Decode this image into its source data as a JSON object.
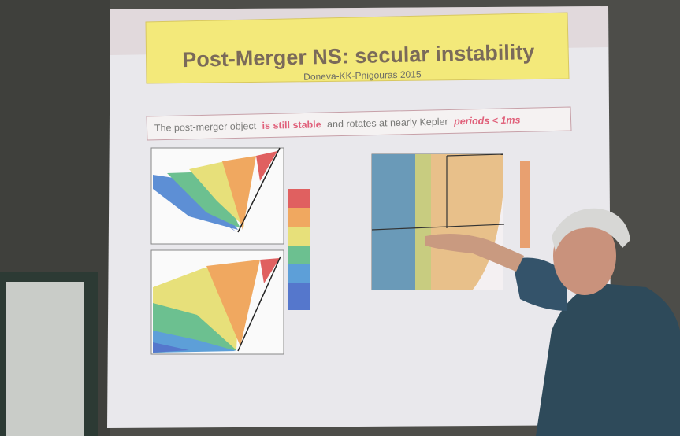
{
  "slide": {
    "title": "Post-Merger NS: secular instability",
    "subtitle": "Doneva-KK-Pnigouras 2015",
    "statement": {
      "text_before": "The post-merger object",
      "highlight_stable": "is still stable",
      "text_middle": "and rotates at nearly Kepler",
      "highlight_period": "periods < 1ms"
    }
  }
}
